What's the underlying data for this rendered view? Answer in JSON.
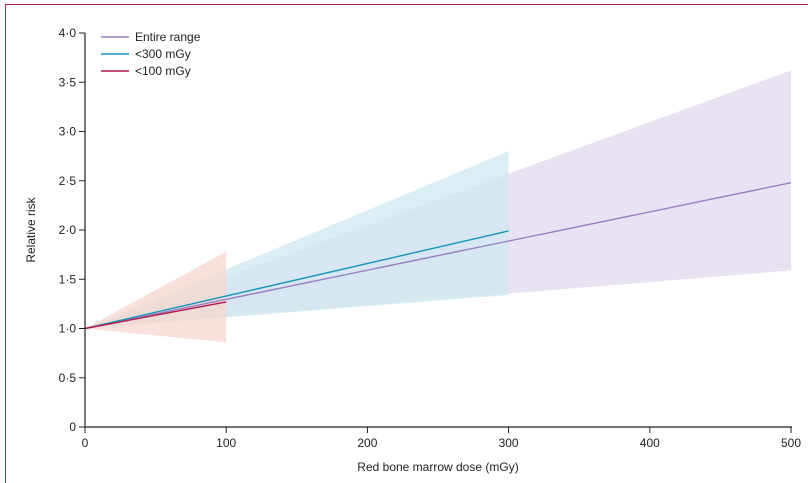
{
  "chart_data": {
    "type": "line",
    "title": "",
    "xlabel": "Red bone marrow dose (mGy)",
    "ylabel": "Relative risk",
    "xlim": [
      0,
      500
    ],
    "ylim": [
      0,
      4
    ],
    "x_ticks": [
      0,
      100,
      200,
      300,
      400,
      500
    ],
    "x_tick_labels": [
      "0",
      "100",
      "200",
      "300",
      "400",
      "500"
    ],
    "y_ticks": [
      0,
      0.5,
      1.0,
      1.5,
      2.0,
      2.5,
      3.0,
      3.5,
      4.0
    ],
    "y_tick_labels": [
      "0",
      "0·5",
      "1·0",
      "1·5",
      "2·0",
      "2·5",
      "3·0",
      "3·5",
      "4·0"
    ],
    "grid": false,
    "legend_position": "top-left",
    "series": [
      {
        "name": "Entire range",
        "color": "#9a7fc1",
        "band_color": "#e9e2f2",
        "x": [
          0,
          500
        ],
        "y": [
          1.0,
          2.48
        ],
        "ci_lower": [
          1.0,
          1.59
        ],
        "ci_upper": [
          1.0,
          3.62
        ]
      },
      {
        "name": "<300 mGy",
        "color": "#1a96b8",
        "band_color": "#cfe8f1",
        "x": [
          0,
          300
        ],
        "y": [
          1.0,
          1.99
        ],
        "ci_lower": [
          1.0,
          1.34
        ],
        "ci_upper": [
          1.0,
          2.8
        ]
      },
      {
        "name": "<100 mGy",
        "color": "#b3164f",
        "band_color": "#f6d7cf",
        "x": [
          0,
          100
        ],
        "y": [
          1.0,
          1.27
        ],
        "ci_lower": [
          1.0,
          0.86
        ],
        "ci_upper": [
          1.0,
          1.78
        ]
      }
    ]
  }
}
